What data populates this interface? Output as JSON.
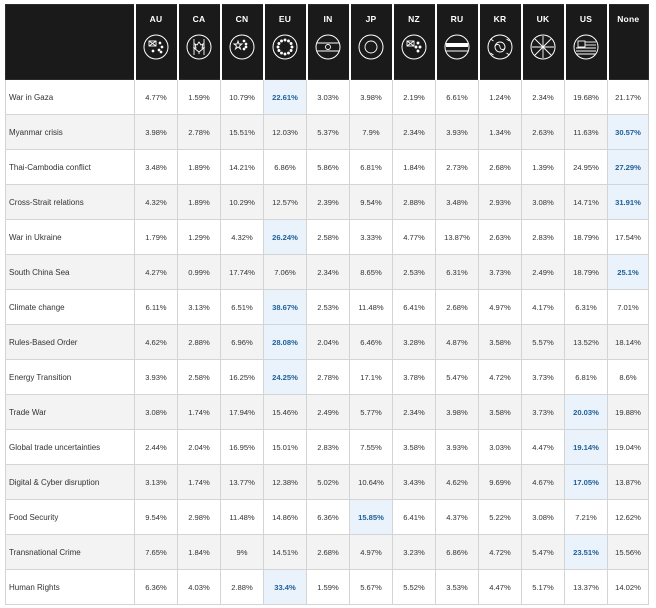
{
  "chart_data": {
    "type": "table",
    "columns": [
      "AU",
      "CA",
      "CN",
      "EU",
      "IN",
      "JP",
      "NZ",
      "RU",
      "KR",
      "UK",
      "US",
      "None"
    ],
    "column_icons": [
      "australia-flag-icon",
      "canada-flag-icon",
      "china-flag-icon",
      "eu-flag-icon",
      "india-flag-icon",
      "japan-flag-icon",
      "new-zealand-flag-icon",
      "russia-flag-icon",
      "south-korea-flag-icon",
      "uk-flag-icon",
      "us-flag-icon",
      null
    ],
    "rows": [
      {
        "label": "War in Gaza",
        "values": [
          "4.77%",
          "1.59%",
          "10.79%",
          "22.61%",
          "3.03%",
          "3.98%",
          "2.19%",
          "6.61%",
          "1.24%",
          "2.34%",
          "19.68%",
          "21.17%"
        ],
        "highlight": 3
      },
      {
        "label": "Myanmar crisis",
        "values": [
          "3.98%",
          "2.78%",
          "15.51%",
          "12.03%",
          "5.37%",
          "7.9%",
          "2.34%",
          "3.93%",
          "1.34%",
          "2.63%",
          "11.63%",
          "30.57%"
        ],
        "highlight": 11
      },
      {
        "label": "Thai-Cambodia conflict",
        "values": [
          "3.48%",
          "1.89%",
          "14.21%",
          "6.86%",
          "5.86%",
          "6.81%",
          "1.84%",
          "2.73%",
          "2.68%",
          "1.39%",
          "24.95%",
          "27.29%"
        ],
        "highlight": 11
      },
      {
        "label": "Cross-Strait relations",
        "values": [
          "4.32%",
          "1.89%",
          "10.29%",
          "12.57%",
          "2.39%",
          "9.54%",
          "2.88%",
          "3.48%",
          "2.93%",
          "3.08%",
          "14.71%",
          "31.91%"
        ],
        "highlight": 11
      },
      {
        "label": "War in Ukraine",
        "values": [
          "1.79%",
          "1.29%",
          "4.32%",
          "26.24%",
          "2.58%",
          "3.33%",
          "4.77%",
          "13.87%",
          "2.63%",
          "2.83%",
          "18.79%",
          "17.54%"
        ],
        "highlight": 3
      },
      {
        "label": "South China Sea",
        "values": [
          "4.27%",
          "0.99%",
          "17.74%",
          "7.06%",
          "2.34%",
          "8.65%",
          "2.53%",
          "6.31%",
          "3.73%",
          "2.49%",
          "18.79%",
          "25.1%"
        ],
        "highlight": 11
      },
      {
        "label": "Climate change",
        "values": [
          "6.11%",
          "3.13%",
          "6.51%",
          "38.67%",
          "2.53%",
          "11.48%",
          "6.41%",
          "2.68%",
          "4.97%",
          "4.17%",
          "6.31%",
          "7.01%"
        ],
        "highlight": 3
      },
      {
        "label": "Rules-Based Order",
        "values": [
          "4.62%",
          "2.88%",
          "6.96%",
          "28.08%",
          "2.04%",
          "6.46%",
          "3.28%",
          "4.87%",
          "3.58%",
          "5.57%",
          "13.52%",
          "18.14%"
        ],
        "highlight": 3
      },
      {
        "label": "Energy Transition",
        "values": [
          "3.93%",
          "2.58%",
          "16.25%",
          "24.25%",
          "2.78%",
          "17.1%",
          "3.78%",
          "5.47%",
          "4.72%",
          "3.73%",
          "6.81%",
          "8.6%"
        ],
        "highlight": 3
      },
      {
        "label": "Trade War",
        "values": [
          "3.08%",
          "1.74%",
          "17.94%",
          "15.46%",
          "2.49%",
          "5.77%",
          "2.34%",
          "3.98%",
          "3.58%",
          "3.73%",
          "20.03%",
          "19.88%"
        ],
        "highlight": 10
      },
      {
        "label": "Global trade uncertainties",
        "values": [
          "2.44%",
          "2.04%",
          "16.95%",
          "15.01%",
          "2.83%",
          "7.55%",
          "3.58%",
          "3.93%",
          "3.03%",
          "4.47%",
          "19.14%",
          "19.04%"
        ],
        "highlight": 10
      },
      {
        "label": "Digital & Cyber disruption",
        "values": [
          "3.13%",
          "1.74%",
          "13.77%",
          "12.38%",
          "5.02%",
          "10.64%",
          "3.43%",
          "4.62%",
          "9.69%",
          "4.67%",
          "17.05%",
          "13.87%"
        ],
        "highlight": 10
      },
      {
        "label": "Food Security",
        "values": [
          "9.54%",
          "2.98%",
          "11.48%",
          "14.86%",
          "6.36%",
          "15.85%",
          "6.41%",
          "4.37%",
          "5.22%",
          "3.08%",
          "7.21%",
          "12.62%"
        ],
        "highlight": 5
      },
      {
        "label": "Transnational Crime",
        "values": [
          "7.65%",
          "1.84%",
          "9%",
          "14.51%",
          "2.68%",
          "4.97%",
          "3.23%",
          "6.86%",
          "4.72%",
          "5.47%",
          "23.51%",
          "15.56%"
        ],
        "highlight": 10
      },
      {
        "label": "Human Rights",
        "values": [
          "6.36%",
          "4.03%",
          "2.88%",
          "33.4%",
          "1.59%",
          "5.67%",
          "5.52%",
          "3.53%",
          "4.47%",
          "5.17%",
          "13.37%",
          "14.02%"
        ],
        "highlight": 3
      }
    ]
  },
  "colors": {
    "header_bg": "#1a1a1a",
    "highlight_bg": "#eaf2fb",
    "highlight_text": "#1f5f99",
    "stripe_bg": "#f3f3f3"
  }
}
